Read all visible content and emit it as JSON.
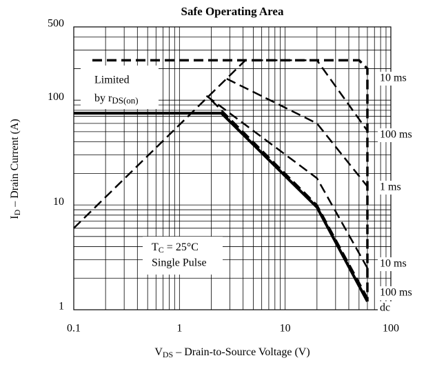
{
  "chart_data": {
    "type": "line",
    "title": "Safe Operating Area",
    "xlabel": {
      "main": "V",
      "sub": "DS",
      "rest": "  –  Drain-to-Source Voltage (V)"
    },
    "ylabel": {
      "main": "I",
      "sub": "D",
      "rest": " – Drain Current (A)"
    },
    "xscale": "log",
    "yscale": "log",
    "grid": true,
    "color": "#000000",
    "xlim": [
      0.1,
      100
    ],
    "ylim": [
      1,
      500
    ],
    "xticks": [
      0.1,
      1,
      10,
      100
    ],
    "yticks": [
      1,
      10,
      100,
      500
    ],
    "xminor": [
      0.2,
      0.3,
      0.4,
      0.5,
      0.6,
      0.7,
      0.8,
      0.9,
      2,
      3,
      4,
      5,
      6,
      7,
      8,
      9,
      20,
      30,
      40,
      50,
      60,
      70,
      80,
      90
    ],
    "yminor": [
      2,
      3,
      4,
      5,
      6,
      7,
      8,
      9,
      20,
      30,
      40,
      50,
      60,
      70,
      80,
      90,
      200,
      300,
      400
    ],
    "annotations": {
      "limited": "Limited",
      "by": "by r",
      "by_sub": "DS(on)",
      "tc": "T",
      "tc_sub": "C",
      "tc_rest": " = 25°C",
      "pulse": "Single Pulse"
    },
    "series": [
      {
        "x": [
          0.1,
          4.2
        ],
        "values": [
          6,
          240
        ],
        "dashed": true,
        "width": 2.5
      },
      {
        "name": "10 ms",
        "x": [
          0.15,
          50,
          60,
          60
        ],
        "values": [
          240,
          240,
          200,
          1.2
        ],
        "dashed": true,
        "width": 3.5
      },
      {
        "name": "100 ms",
        "x": [
          5,
          20,
          60
        ],
        "values": [
          240,
          240,
          51
        ],
        "dashed": true,
        "width": 2.5
      },
      {
        "name": "1 ms",
        "x": [
          2.8,
          20,
          60
        ],
        "values": [
          160,
          60,
          15
        ],
        "dashed": true,
        "width": 2.5
      },
      {
        "name": "10 ms",
        "x": [
          1.8,
          20,
          60
        ],
        "values": [
          110,
          18,
          2.5
        ],
        "dashed": true,
        "width": 2.5
      },
      {
        "name": "100 ms",
        "x": [
          2,
          20,
          60
        ],
        "values": [
          100,
          10,
          1.3
        ],
        "dashed": true,
        "width": 2.5
      },
      {
        "name": "dc",
        "x": [
          0.1,
          2.5,
          20,
          60
        ],
        "values": [
          75,
          75,
          9.5,
          1.2
        ],
        "dashed": false,
        "width": 4
      }
    ]
  }
}
